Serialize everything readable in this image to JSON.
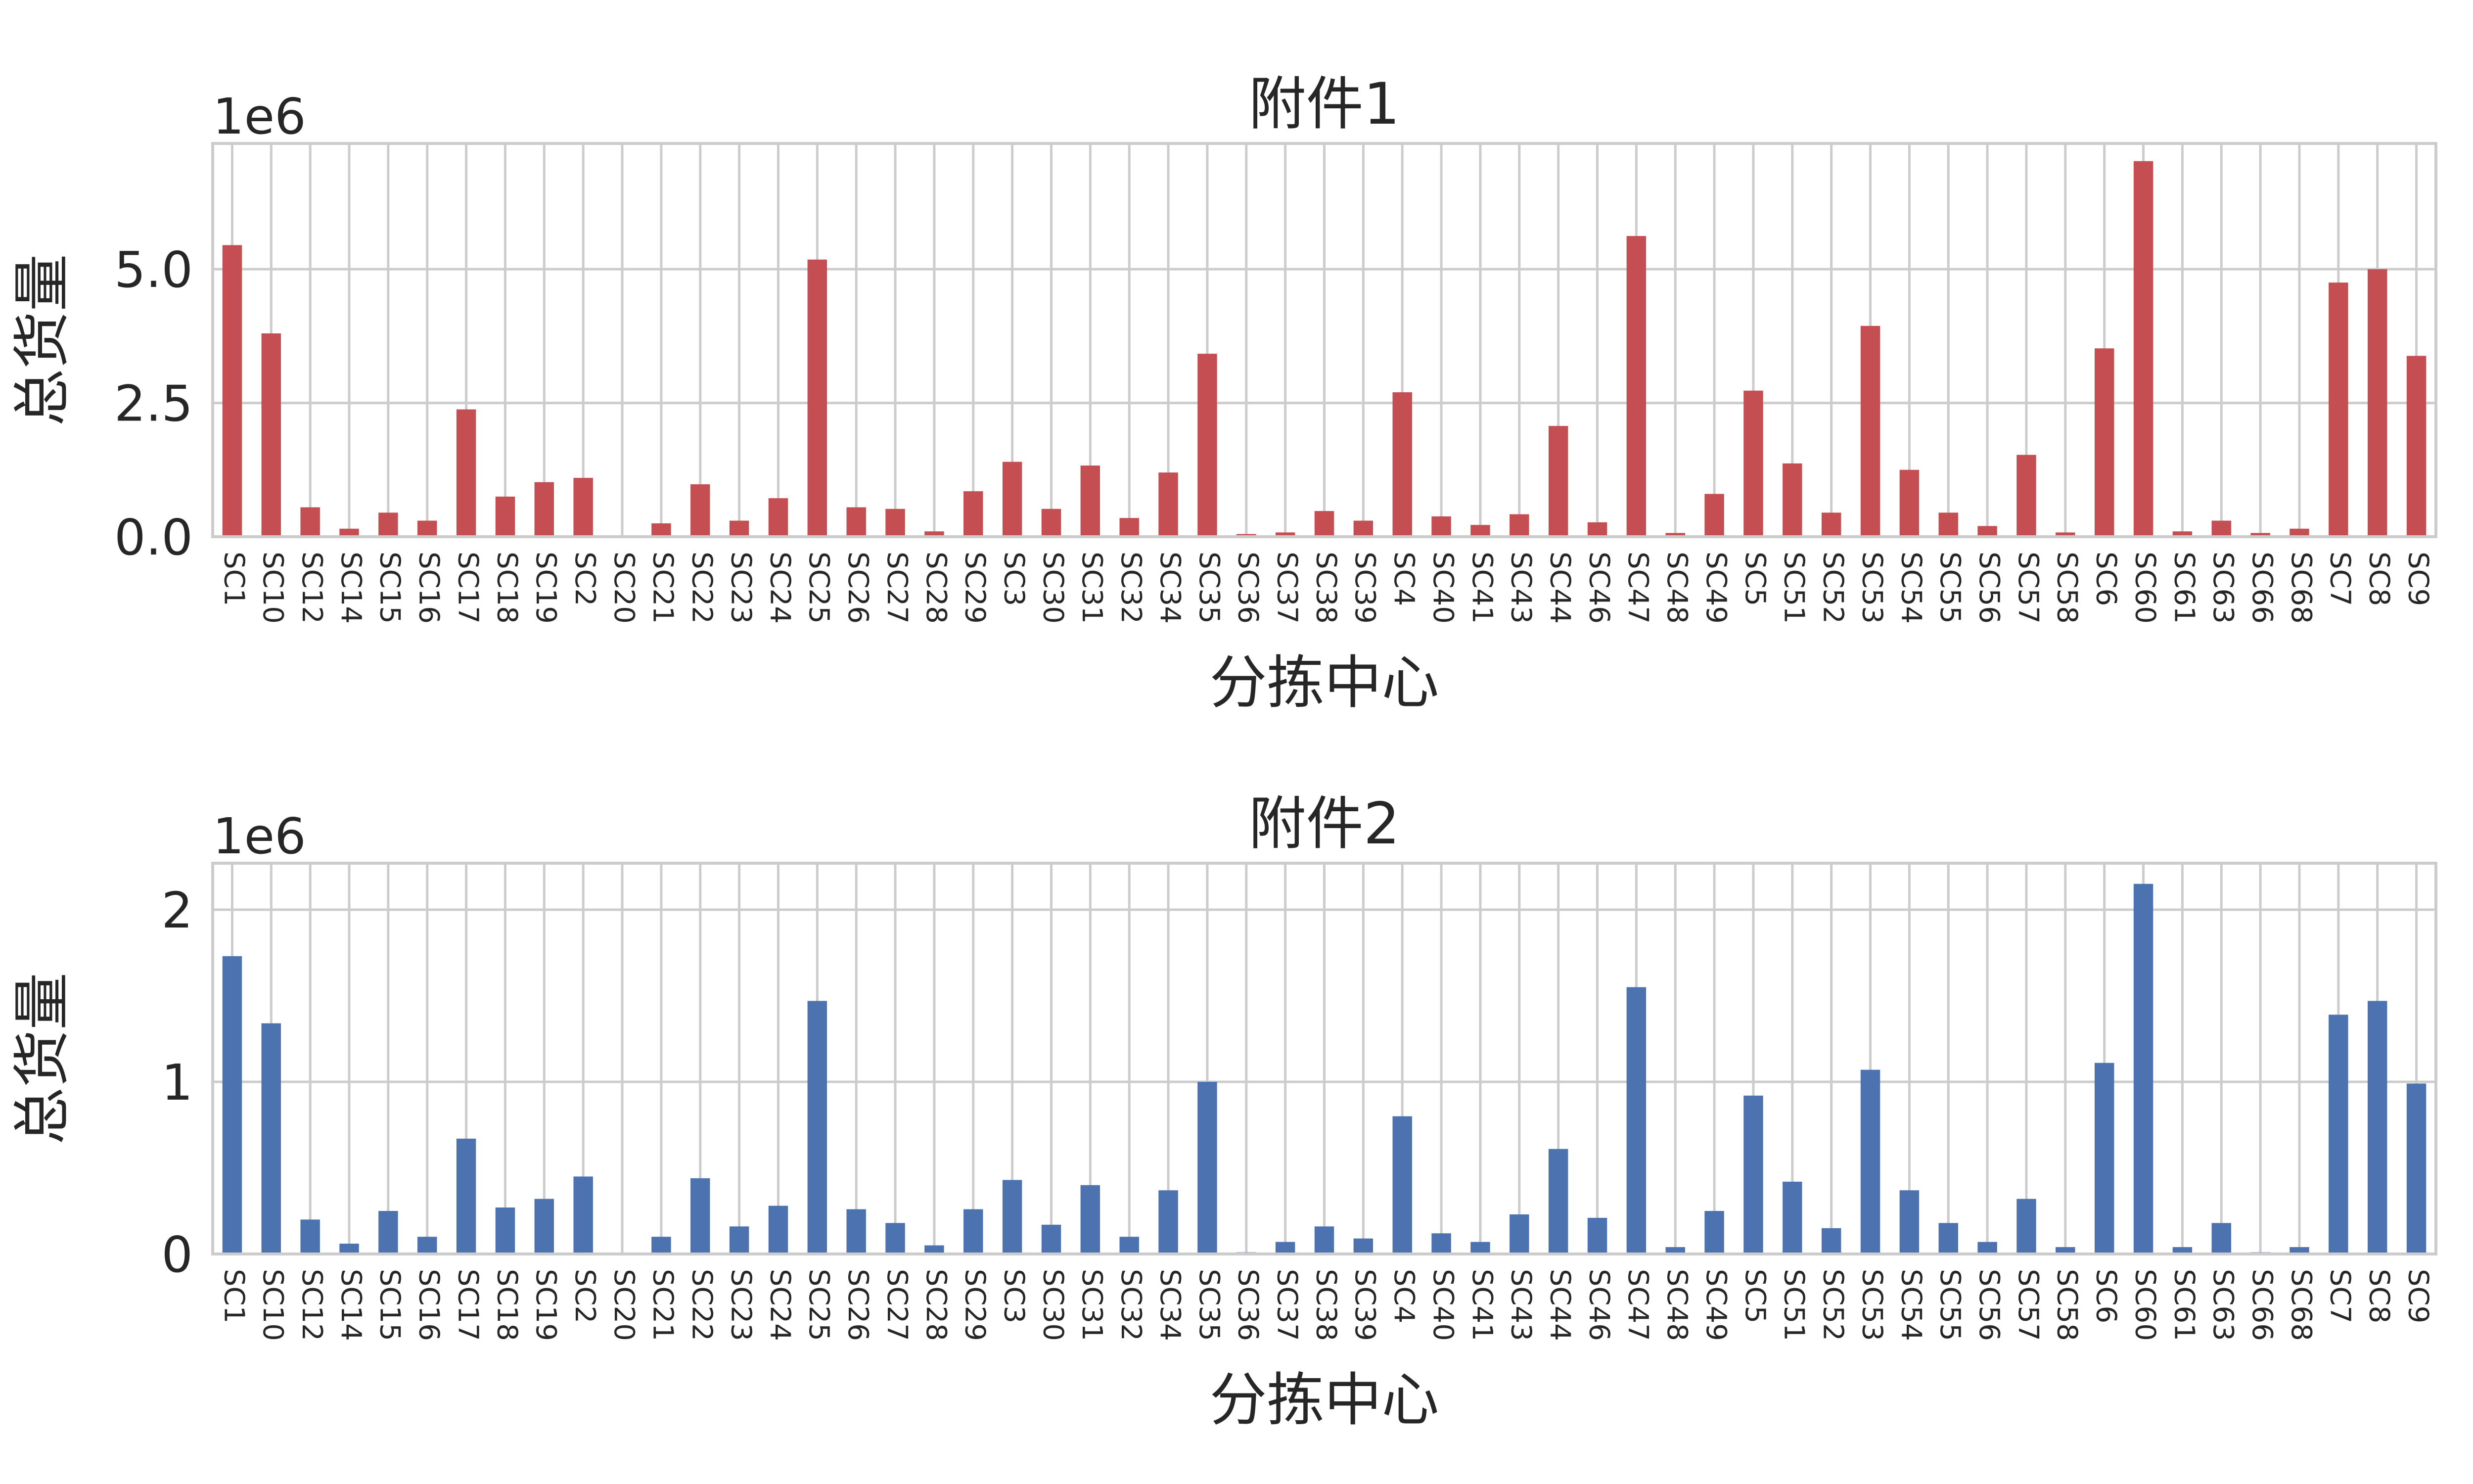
{
  "chart_data": [
    {
      "type": "bar",
      "title": "附件1",
      "xlabel": "分拣中心",
      "ylabel": "总货量",
      "offset_label": "1e6",
      "color": "#c44e52",
      "ylim": [
        0,
        7.35
      ],
      "yticks": [
        0.0,
        2.5,
        5.0
      ],
      "ytick_labels": [
        "0.0",
        "2.5",
        "5.0"
      ],
      "grid": true,
      "categories": [
        "SC1",
        "SC10",
        "SC12",
        "SC14",
        "SC15",
        "SC16",
        "SC17",
        "SC18",
        "SC19",
        "SC2",
        "SC20",
        "SC21",
        "SC22",
        "SC23",
        "SC24",
        "SC25",
        "SC26",
        "SC27",
        "SC28",
        "SC29",
        "SC3",
        "SC30",
        "SC31",
        "SC32",
        "SC34",
        "SC35",
        "SC36",
        "SC37",
        "SC38",
        "SC39",
        "SC4",
        "SC40",
        "SC41",
        "SC43",
        "SC44",
        "SC46",
        "SC47",
        "SC48",
        "SC49",
        "SC5",
        "SC51",
        "SC52",
        "SC53",
        "SC54",
        "SC55",
        "SC56",
        "SC57",
        "SC58",
        "SC6",
        "SC60",
        "SC61",
        "SC63",
        "SC66",
        "SC68",
        "SC7",
        "SC8",
        "SC9"
      ],
      "values": [
        5.45,
        3.8,
        0.55,
        0.15,
        0.45,
        0.3,
        2.38,
        0.75,
        1.02,
        1.1,
        0.0,
        0.25,
        0.98,
        0.3,
        0.72,
        5.18,
        0.55,
        0.52,
        0.1,
        0.85,
        1.4,
        0.52,
        1.33,
        0.35,
        1.2,
        3.42,
        0.05,
        0.08,
        0.48,
        0.3,
        2.7,
        0.38,
        0.22,
        0.42,
        2.07,
        0.27,
        5.62,
        0.07,
        0.8,
        2.73,
        1.37,
        0.45,
        3.94,
        1.25,
        0.45,
        0.2,
        1.53,
        0.08,
        3.52,
        7.02,
        0.1,
        0.3,
        0.07,
        0.15,
        4.75,
        5.0,
        3.38
      ]
    },
    {
      "type": "bar",
      "title": "附件2",
      "xlabel": "分拣中心",
      "ylabel": "总货量",
      "offset_label": "1e6",
      "color": "#4c72b0",
      "ylim": [
        0,
        2.27
      ],
      "yticks": [
        0,
        1,
        2
      ],
      "ytick_labels": [
        "0",
        "1",
        "2"
      ],
      "grid": true,
      "categories": [
        "SC1",
        "SC10",
        "SC12",
        "SC14",
        "SC15",
        "SC16",
        "SC17",
        "SC18",
        "SC19",
        "SC2",
        "SC20",
        "SC21",
        "SC22",
        "SC23",
        "SC24",
        "SC25",
        "SC26",
        "SC27",
        "SC28",
        "SC29",
        "SC3",
        "SC30",
        "SC31",
        "SC32",
        "SC34",
        "SC35",
        "SC36",
        "SC37",
        "SC38",
        "SC39",
        "SC4",
        "SC40",
        "SC41",
        "SC43",
        "SC44",
        "SC46",
        "SC47",
        "SC48",
        "SC49",
        "SC5",
        "SC51",
        "SC52",
        "SC53",
        "SC54",
        "SC55",
        "SC56",
        "SC57",
        "SC58",
        "SC6",
        "SC60",
        "SC61",
        "SC63",
        "SC66",
        "SC68",
        "SC7",
        "SC8",
        "SC9"
      ],
      "values": [
        1.73,
        1.34,
        0.2,
        0.06,
        0.25,
        0.1,
        0.67,
        0.27,
        0.32,
        0.45,
        0.0,
        0.1,
        0.44,
        0.16,
        0.28,
        1.47,
        0.26,
        0.18,
        0.05,
        0.26,
        0.43,
        0.17,
        0.4,
        0.1,
        0.37,
        1.0,
        0.01,
        0.07,
        0.16,
        0.09,
        0.8,
        0.12,
        0.07,
        0.23,
        0.61,
        0.21,
        1.55,
        0.04,
        0.25,
        0.92,
        0.42,
        0.15,
        1.07,
        0.37,
        0.18,
        0.07,
        0.32,
        0.04,
        1.11,
        2.15,
        0.04,
        0.18,
        0.01,
        0.04,
        1.39,
        1.47,
        0.99
      ]
    }
  ]
}
